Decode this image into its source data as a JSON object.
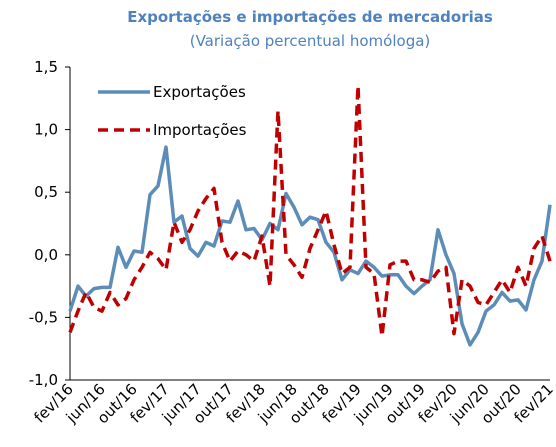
{
  "chart_data": {
    "type": "line",
    "title": "Exportações e importações de mercadorias",
    "subtitle": "(Variação percentual homóloga)",
    "categories": [
      "fev/16",
      null,
      null,
      null,
      "jun/16",
      null,
      null,
      null,
      "out/16",
      null,
      null,
      null,
      "fev/17",
      null,
      null,
      null,
      "jun/17",
      null,
      null,
      null,
      "out/17",
      null,
      null,
      null,
      "fev/18",
      null,
      null,
      null,
      "jun/18",
      null,
      null,
      null,
      "out/18",
      null,
      null,
      null,
      "fev/19",
      null,
      null,
      null,
      "jun/19",
      null,
      null,
      null,
      "out/19",
      null,
      null,
      null,
      "fev/20",
      null,
      null,
      null,
      "jun/20",
      null,
      null,
      null,
      "out/20",
      null,
      null,
      null,
      "fev/21"
    ],
    "series": [
      {
        "name": "Exportações",
        "color": "#5b8db8",
        "dash": false,
        "values": [
          -0.45,
          -0.25,
          -0.33,
          -0.27,
          -0.26,
          -0.26,
          0.06,
          -0.1,
          0.03,
          0.02,
          0.48,
          0.55,
          0.86,
          0.26,
          0.31,
          0.05,
          -0.01,
          0.1,
          0.07,
          0.27,
          0.26,
          0.43,
          0.2,
          0.21,
          0.12,
          0.25,
          0.2,
          0.49,
          0.38,
          0.24,
          0.3,
          0.28,
          0.1,
          0.02,
          -0.2,
          -0.12,
          -0.15,
          -0.05,
          -0.1,
          -0.17,
          -0.16,
          -0.16,
          -0.25,
          -0.31,
          -0.25,
          -0.2,
          0.2,
          0.0,
          -0.15,
          -0.55,
          -0.72,
          -0.62,
          -0.45,
          -0.4,
          -0.3,
          -0.37,
          -0.36,
          -0.44,
          -0.2,
          -0.05,
          0.4
        ]
      },
      {
        "name": "Importações",
        "color": "#c00000",
        "dash": true,
        "values": [
          -0.62,
          -0.45,
          -0.3,
          -0.42,
          -0.45,
          -0.3,
          -0.4,
          -0.35,
          -0.2,
          -0.1,
          0.02,
          -0.03,
          -0.12,
          0.26,
          0.1,
          0.2,
          0.35,
          0.45,
          0.53,
          0.1,
          -0.05,
          0.03,
          0.0,
          -0.05,
          0.15,
          -0.25,
          1.15,
          0.0,
          -0.08,
          -0.18,
          0.05,
          0.2,
          0.35,
          0.08,
          -0.15,
          -0.1,
          1.35,
          -0.1,
          -0.15,
          -0.65,
          -0.08,
          -0.05,
          -0.05,
          -0.2,
          -0.2,
          -0.22,
          -0.13,
          -0.1,
          -0.63,
          -0.2,
          -0.25,
          -0.38,
          -0.4,
          -0.3,
          -0.2,
          -0.3,
          -0.1,
          -0.25,
          0.05,
          0.15,
          -0.05
        ]
      }
    ],
    "ylim": [
      -1.0,
      1.5
    ],
    "yticks": [
      {
        "value": -1.0,
        "label": "-1,0"
      },
      {
        "value": -0.5,
        "label": "-0,5"
      },
      {
        "value": 0.0,
        "label": "0,0"
      },
      {
        "value": 0.5,
        "label": "0,5"
      },
      {
        "value": 1.0,
        "label": "1,0"
      },
      {
        "value": 1.5,
        "label": "1,5"
      }
    ],
    "grid": false,
    "legend": "upper left"
  }
}
